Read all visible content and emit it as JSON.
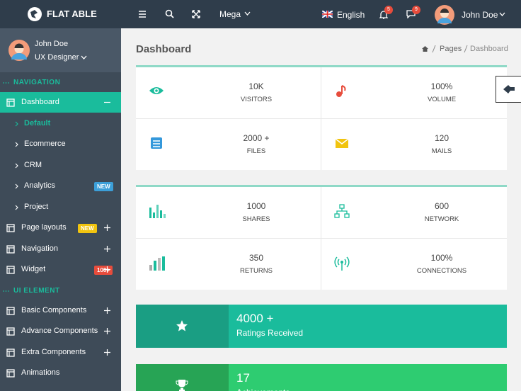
{
  "topbar": {
    "brand": "FLAT ABLE",
    "mega": "Mega",
    "language": "English",
    "notifications": "5",
    "messages": "9",
    "user": "John Doe"
  },
  "sidebar": {
    "profile": {
      "name": "John Doe",
      "role": "UX Designer"
    },
    "sections": [
      {
        "title": "NAVIGATION",
        "items": [
          {
            "label": "Dashboard",
            "children": [
              {
                "label": "Default"
              },
              {
                "label": "Ecommerce"
              },
              {
                "label": "CRM"
              },
              {
                "label": "Analytics",
                "badge": "NEW"
              },
              {
                "label": "Project"
              }
            ]
          },
          {
            "label": "Page layouts",
            "badge": "NEW"
          },
          {
            "label": "Navigation"
          },
          {
            "label": "Widget",
            "badge": "100+"
          }
        ]
      },
      {
        "title": "UI ELEMENT",
        "items": [
          {
            "label": "Basic Components"
          },
          {
            "label": "Advance Components"
          },
          {
            "label": "Extra Components"
          },
          {
            "label": "Animations"
          }
        ]
      }
    ]
  },
  "page": {
    "title": "Dashboard",
    "breadcrumb": [
      "Pages",
      "Dashboard"
    ]
  },
  "cards": [
    [
      {
        "value": "10K",
        "label": "VISITORS"
      },
      {
        "value": "100%",
        "label": "VOLUME"
      },
      {
        "value": "2000 +",
        "label": "FILES"
      },
      {
        "value": "120",
        "label": "MAILS"
      }
    ],
    [
      {
        "value": "1000",
        "label": "SHARES"
      },
      {
        "value": "600",
        "label": "NETWORK"
      },
      {
        "value": "350",
        "label": "RETURNS"
      },
      {
        "value": "100%",
        "label": "CONNECTIONS"
      }
    ]
  ],
  "banners": [
    {
      "value": "4000 +",
      "label": "Ratings Received"
    },
    {
      "value": "17",
      "label": "Achievements"
    }
  ]
}
